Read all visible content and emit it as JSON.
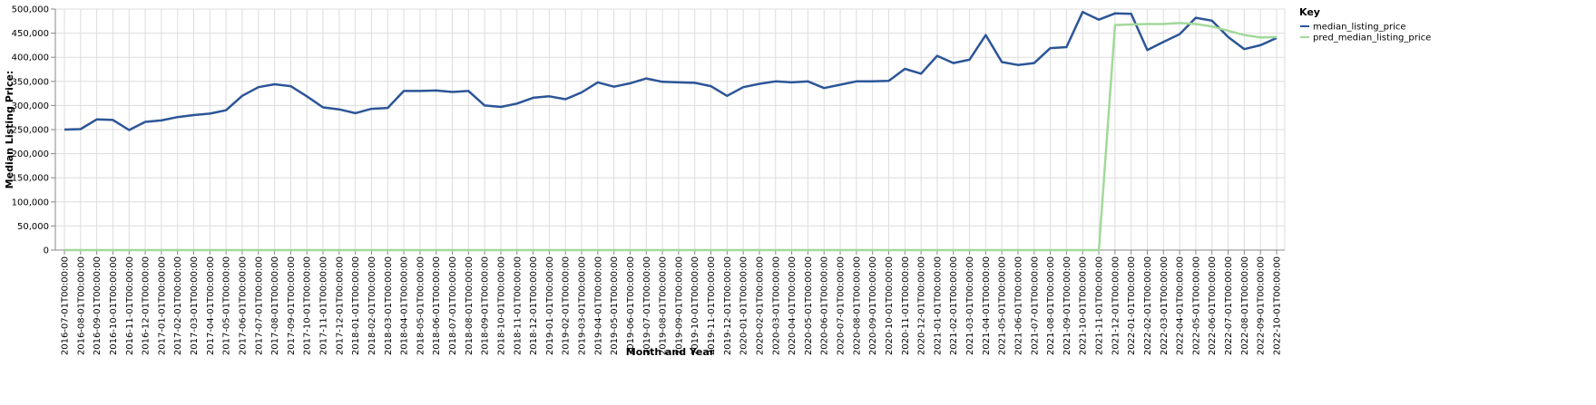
{
  "chart_data": {
    "type": "line",
    "title": "",
    "xlabel": "Month and Year",
    "ylabel": "Median Listing Price:",
    "ylim": [
      0,
      500000
    ],
    "yticks": [
      "0",
      "50,000",
      "100,000",
      "150,000",
      "200,000",
      "250,000",
      "300,000",
      "350,000",
      "400,000",
      "450,000",
      "500,000"
    ],
    "ytick_values": [
      0,
      50000,
      100000,
      150000,
      200000,
      250000,
      300000,
      350000,
      400000,
      450000,
      500000
    ],
    "grid": true,
    "legend": {
      "title": "Key",
      "position": "top-right"
    },
    "x": [
      "2016-07-01T00:00:00",
      "2016-08-01T00:00:00",
      "2016-09-01T00:00:00",
      "2016-10-01T00:00:00",
      "2016-11-01T00:00:00",
      "2016-12-01T00:00:00",
      "2017-01-01T00:00:00",
      "2017-02-01T00:00:00",
      "2017-03-01T00:00:00",
      "2017-04-01T00:00:00",
      "2017-05-01T00:00:00",
      "2017-06-01T00:00:00",
      "2017-07-01T00:00:00",
      "2017-08-01T00:00:00",
      "2017-09-01T00:00:00",
      "2017-10-01T00:00:00",
      "2017-11-01T00:00:00",
      "2017-12-01T00:00:00",
      "2018-01-01T00:00:00",
      "2018-02-01T00:00:00",
      "2018-03-01T00:00:00",
      "2018-04-01T00:00:00",
      "2018-05-01T00:00:00",
      "2018-06-01T00:00:00",
      "2018-07-01T00:00:00",
      "2018-08-01T00:00:00",
      "2018-09-01T00:00:00",
      "2018-10-01T00:00:00",
      "2018-11-01T00:00:00",
      "2018-12-01T00:00:00",
      "2019-01-01T00:00:00",
      "2019-02-01T00:00:00",
      "2019-03-01T00:00:00",
      "2019-04-01T00:00:00",
      "2019-05-01T00:00:00",
      "2019-06-01T00:00:00",
      "2019-07-01T00:00:00",
      "2019-08-01T00:00:00",
      "2019-09-01T00:00:00",
      "2019-10-01T00:00:00",
      "2019-11-01T00:00:00",
      "2019-12-01T00:00:00",
      "2020-01-01T00:00:00",
      "2020-02-01T00:00:00",
      "2020-03-01T00:00:00",
      "2020-04-01T00:00:00",
      "2020-05-01T00:00:00",
      "2020-06-01T00:00:00",
      "2020-07-01T00:00:00",
      "2020-08-01T00:00:00",
      "2020-09-01T00:00:00",
      "2020-10-01T00:00:00",
      "2020-11-01T00:00:00",
      "2020-12-01T00:00:00",
      "2021-01-01T00:00:00",
      "2021-02-01T00:00:00",
      "2021-03-01T00:00:00",
      "2021-04-01T00:00:00",
      "2021-05-01T00:00:00",
      "2021-06-01T00:00:00",
      "2021-07-01T00:00:00",
      "2021-08-01T00:00:00",
      "2021-09-01T00:00:00",
      "2021-10-01T00:00:00",
      "2021-11-01T00:00:00",
      "2021-12-01T00:00:00",
      "2022-01-01T00:00:00",
      "2022-02-01T00:00:00",
      "2022-03-01T00:00:00",
      "2022-04-01T00:00:00",
      "2022-05-01T00:00:00",
      "2022-06-01T00:00:00",
      "2022-07-01T00:00:00",
      "2022-08-01T00:00:00",
      "2022-09-01T00:00:00",
      "2022-10-01T00:00:00"
    ],
    "series": [
      {
        "name": "median_listing_price",
        "color": "#2c5597",
        "values": [
          250000,
          251000,
          271000,
          270000,
          249000,
          266000,
          269000,
          276000,
          280000,
          283000,
          290000,
          320000,
          338000,
          344000,
          340000,
          319000,
          296000,
          292000,
          284000,
          293000,
          295000,
          330000,
          330000,
          331000,
          328000,
          330000,
          300000,
          297000,
          304000,
          316000,
          319000,
          313000,
          327000,
          348000,
          339000,
          346000,
          356000,
          349000,
          348000,
          347000,
          340000,
          320000,
          338000,
          345000,
          350000,
          348000,
          350000,
          336000,
          343000,
          350000,
          350000,
          351000,
          376000,
          366000,
          403000,
          388000,
          395000,
          446000,
          390000,
          384000,
          388000,
          419000,
          421000,
          494000,
          478000,
          491000,
          490000,
          415000,
          432000,
          448000,
          482000,
          476000,
          442000,
          417000,
          425000,
          440000
        ]
      },
      {
        "name": "pred_median_listing_price",
        "color": "#a2d99a",
        "values": [
          0,
          0,
          0,
          0,
          0,
          0,
          0,
          0,
          0,
          0,
          0,
          0,
          0,
          0,
          0,
          0,
          0,
          0,
          0,
          0,
          0,
          0,
          0,
          0,
          0,
          0,
          0,
          0,
          0,
          0,
          0,
          0,
          0,
          0,
          0,
          0,
          0,
          0,
          0,
          0,
          0,
          0,
          0,
          0,
          0,
          0,
          0,
          0,
          0,
          0,
          0,
          0,
          0,
          0,
          0,
          0,
          0,
          0,
          0,
          0,
          0,
          0,
          0,
          0,
          0,
          467000,
          468000,
          469000,
          469000,
          471000,
          469000,
          464000,
          455000,
          446000,
          441000,
          442000
        ]
      }
    ]
  }
}
